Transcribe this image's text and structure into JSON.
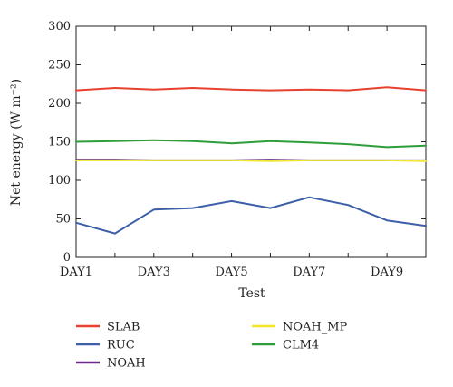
{
  "chart_data": {
    "type": "line",
    "title": "",
    "xlabel": "Test",
    "ylabel": "Net energy (W m⁻²)",
    "ylim": [
      0,
      300
    ],
    "yticks": [
      0,
      50,
      100,
      150,
      200,
      250,
      300
    ],
    "categories": [
      "DAY1",
      "DAY2",
      "DAY3",
      "DAY4",
      "DAY5",
      "DAY6",
      "DAY7",
      "DAY8",
      "DAY9",
      "DAY10"
    ],
    "xtick_labels": [
      "DAY1",
      "DAY3",
      "DAY5",
      "DAY7",
      "DAY9"
    ],
    "grid": false,
    "legend_position": "bottom",
    "series": [
      {
        "name": "SLAB",
        "color": "#e8412f",
        "values": [
          217,
          220,
          218,
          220,
          218,
          217,
          218,
          217,
          221,
          217
        ]
      },
      {
        "name": "RUC",
        "color": "#3d5fa8",
        "values": [
          45,
          31,
          62,
          64,
          73,
          64,
          78,
          68,
          48,
          41
        ]
      },
      {
        "name": "NOAH",
        "color": "#6a2a8a",
        "values": [
          127,
          127,
          126,
          126,
          126,
          127,
          126,
          126,
          126,
          126
        ]
      },
      {
        "name": "NOAH_MP",
        "color": "#f2e62a",
        "values": [
          126,
          126,
          126,
          126,
          126,
          125,
          126,
          126,
          126,
          125
        ]
      },
      {
        "name": "CLM4",
        "color": "#2f9e3a",
        "values": [
          150,
          151,
          152,
          151,
          148,
          151,
          149,
          147,
          143,
          145
        ]
      }
    ]
  }
}
